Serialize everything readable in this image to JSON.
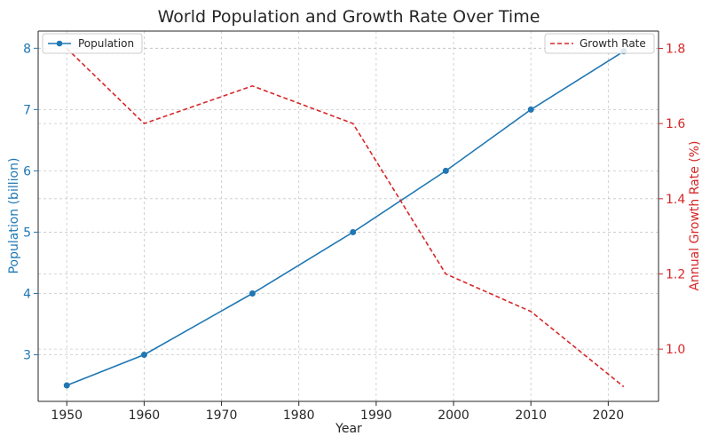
{
  "chart_data": {
    "type": "line",
    "title": "World Population and Growth Rate Over Time",
    "xlabel": "Year",
    "ylabel_left": "Population (billion)",
    "ylabel_right": "Annual Growth Rate (%)",
    "xlim": [
      1946.3,
      2026.5
    ],
    "ylim_left": [
      2.24,
      8.28
    ],
    "ylim_right": [
      0.861,
      1.846
    ],
    "x_ticks": [
      1950,
      1960,
      1970,
      1980,
      1990,
      2000,
      2010,
      2020
    ],
    "y_ticks_left": [
      3,
      4,
      5,
      6,
      7,
      8
    ],
    "y_ticks_right": [
      1.0,
      1.2,
      1.4,
      1.6,
      1.8
    ],
    "grid": true,
    "series": [
      {
        "name": "Population",
        "axis": "left",
        "color": "#1f77b4",
        "style": "solid",
        "marker": "circle",
        "x": [
          1950,
          1960,
          1974,
          1987,
          1999,
          2010,
          2022
        ],
        "values": [
          2.5,
          3.0,
          4.0,
          5.0,
          6.0,
          7.0,
          7.95
        ]
      },
      {
        "name": "Growth Rate",
        "axis": "right",
        "color": "#d62728",
        "style": "dashed",
        "marker": "none",
        "x": [
          1950,
          1960,
          1974,
          1987,
          1999,
          2010,
          2022
        ],
        "values": [
          1.8,
          1.6,
          1.7,
          1.6,
          1.2,
          1.1,
          0.9
        ]
      }
    ],
    "legends": [
      {
        "series": "Population",
        "placement": "top-left"
      },
      {
        "series": "Growth Rate",
        "placement": "top-right"
      }
    ]
  }
}
